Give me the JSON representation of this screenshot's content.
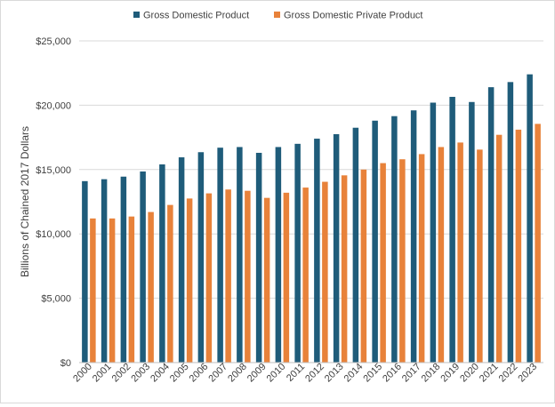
{
  "chart_data": {
    "type": "bar",
    "title": "",
    "xlabel": "",
    "ylabel": "Billions of Chained 2017 Dollars",
    "ylim": [
      0,
      25000
    ],
    "yticks": [
      0,
      5000,
      10000,
      15000,
      20000,
      25000
    ],
    "ytick_labels": [
      "$0",
      "$5,000",
      "$10,000",
      "$15,000",
      "$20,000",
      "$25,000"
    ],
    "grid": true,
    "legend_position": "top",
    "categories": [
      "2000",
      "2001",
      "2002",
      "2003",
      "2004",
      "2005",
      "2006",
      "2007",
      "2008",
      "2009",
      "2010",
      "2011",
      "2012",
      "2013",
      "2014",
      "2015",
      "2016",
      "2017",
      "2018",
      "2019",
      "2020",
      "2021",
      "2022",
      "2023"
    ],
    "series": [
      {
        "name": "Gross Domestic Product",
        "color": "#1f5c7a",
        "values": [
          14100,
          14250,
          14450,
          14850,
          15400,
          15950,
          16350,
          16700,
          16750,
          16300,
          16750,
          17000,
          17400,
          17750,
          18250,
          18800,
          19150,
          19600,
          20200,
          20650,
          20250,
          21400,
          21800,
          22400
        ]
      },
      {
        "name": "Gross Domestic Private Product",
        "color": "#e8823a",
        "values": [
          11200,
          11200,
          11350,
          11700,
          12250,
          12750,
          13150,
          13450,
          13350,
          12800,
          13200,
          13600,
          14050,
          14550,
          15000,
          15500,
          15800,
          16200,
          16750,
          17100,
          16550,
          17700,
          18100,
          18550
        ]
      }
    ]
  }
}
